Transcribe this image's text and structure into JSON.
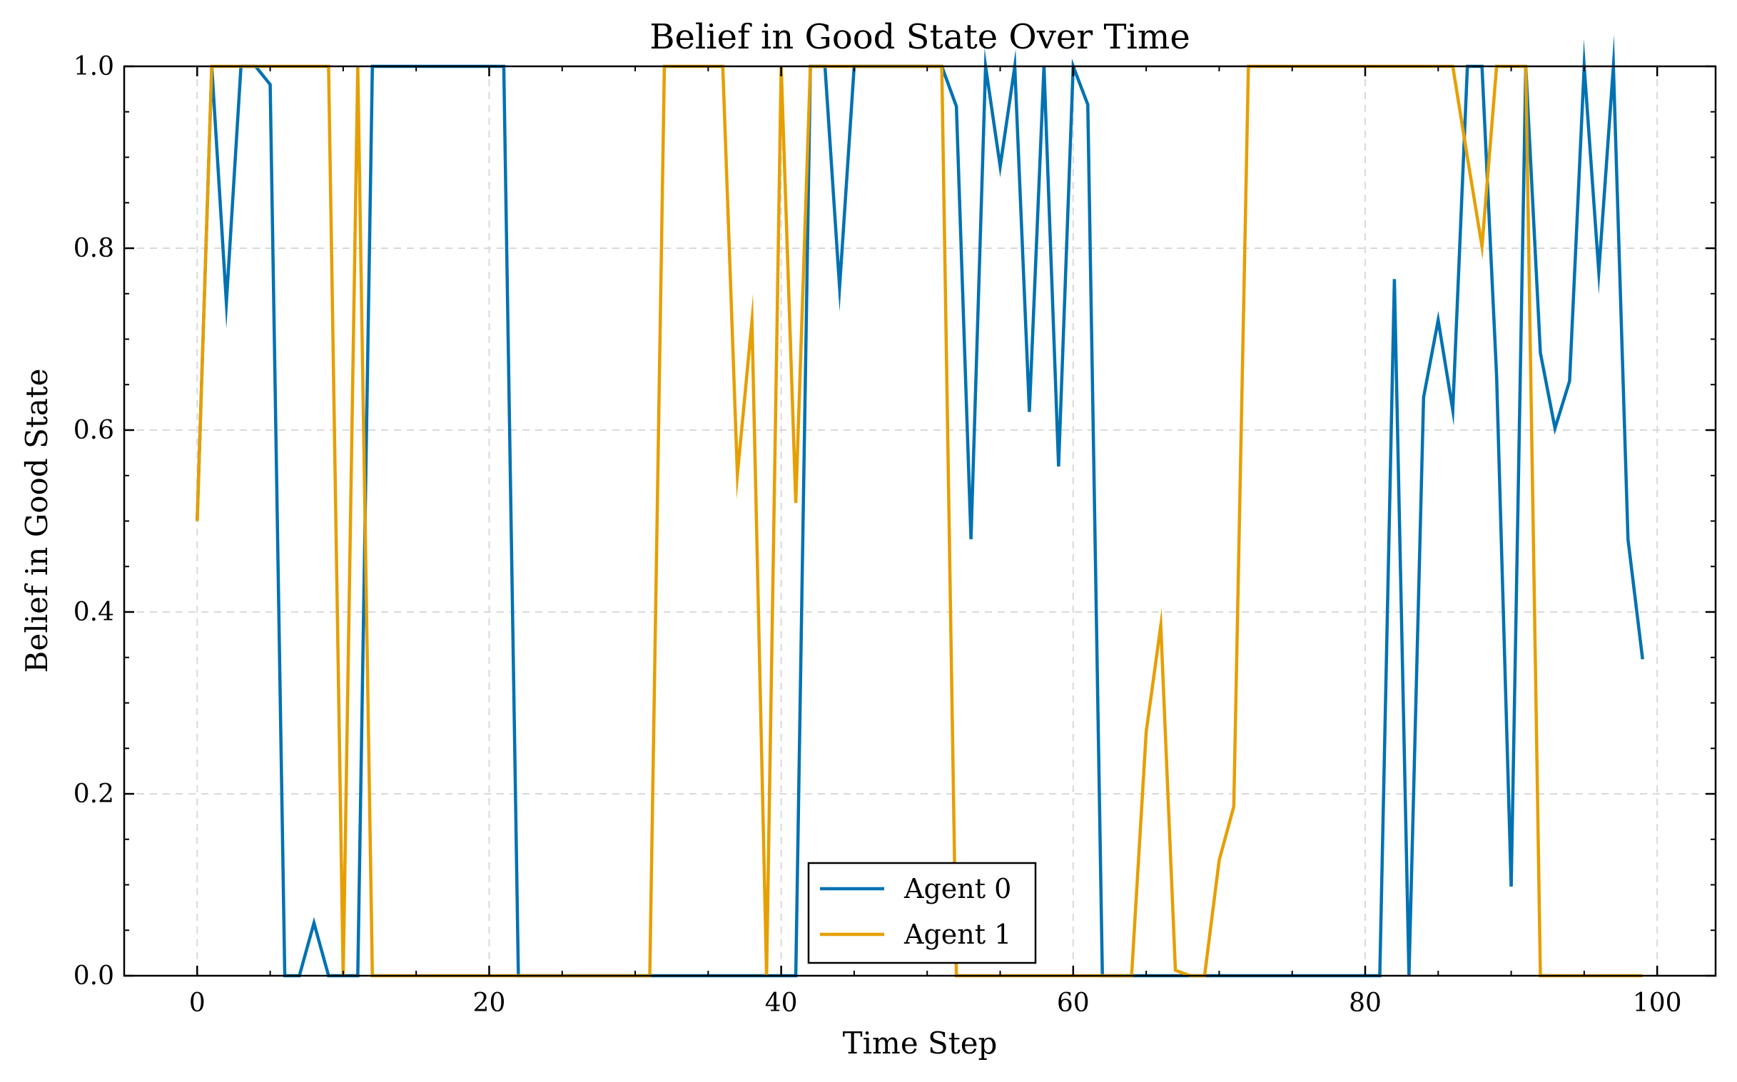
{
  "chart_data": {
    "type": "line",
    "title": "Belief in Good State Over Time",
    "xlabel": "Time Step",
    "ylabel": "Belief in Good State",
    "xlim": [
      -5,
      104
    ],
    "ylim": [
      0,
      1
    ],
    "xticks": [
      0,
      20,
      40,
      60,
      80,
      100
    ],
    "yticks": [
      0.0,
      0.2,
      0.4,
      0.6,
      0.8,
      1.0
    ],
    "xtick_labels": [
      "0",
      "20",
      "40",
      "60",
      "80",
      "100"
    ],
    "ytick_labels": [
      "0.0",
      "0.2",
      "0.4",
      "0.6",
      "0.8",
      "1.0"
    ],
    "grid": true,
    "legend_position": "bottom-center",
    "x": [
      0,
      1,
      2,
      3,
      4,
      5,
      6,
      7,
      8,
      9,
      10,
      11,
      12,
      13,
      14,
      15,
      16,
      17,
      18,
      19,
      20,
      21,
      22,
      23,
      24,
      25,
      26,
      27,
      28,
      29,
      30,
      31,
      32,
      33,
      34,
      35,
      36,
      37,
      38,
      39,
      40,
      41,
      42,
      43,
      44,
      45,
      46,
      47,
      48,
      49,
      50,
      51,
      52,
      53,
      54,
      55,
      56,
      57,
      58,
      59,
      60,
      61,
      62,
      63,
      64,
      65,
      66,
      67,
      68,
      69,
      70,
      71,
      72,
      73,
      74,
      75,
      76,
      77,
      78,
      79,
      80,
      81,
      82,
      83,
      84,
      85,
      86,
      87,
      88,
      89,
      90,
      91,
      92,
      93,
      94,
      95,
      96,
      97,
      98,
      99
    ],
    "series": [
      {
        "name": "Agent 0",
        "color": "#0072B2",
        "values": [
          0.5,
          1.0,
          0.74,
          1.0,
          1.0,
          0.98,
          0.0,
          0.0,
          0.058,
          0.0,
          0.0,
          0.0,
          1.0,
          1.0,
          1.0,
          1.0,
          1.0,
          1.0,
          1.0,
          1.0,
          1.0,
          1.0,
          0.0,
          0.0,
          0.0,
          0.0,
          0.0,
          0.0,
          0.0,
          0.0,
          0.0,
          0.0,
          0.0,
          0.0,
          0.0,
          0.0,
          0.0,
          0.0,
          0.0,
          0.0,
          0.0,
          0.0,
          1.0,
          1.0,
          0.757,
          1.0,
          1.0,
          1.0,
          1.0,
          1.0,
          1.0,
          1.0,
          0.956,
          0.48,
          1.0,
          0.89,
          1.0,
          0.62,
          1.0,
          0.56,
          1.0,
          0.958,
          0.0,
          0.0,
          0.0,
          0.0,
          0.0,
          0.0,
          0.0,
          0.0,
          0.0,
          0.0,
          0.0,
          0.0,
          0.0,
          0.0,
          0.0,
          0.0,
          0.0,
          0.0,
          0.0,
          0.0,
          0.766,
          0.0,
          0.636,
          0.721,
          0.622,
          1.0,
          1.0,
          0.66,
          0.098,
          1.0,
          0.685,
          0.602,
          0.654,
          1.0,
          0.774,
          1.0,
          0.48,
          0.348
        ]
      },
      {
        "name": "Agent 1",
        "color": "#E69F00",
        "values": [
          0.5,
          1.0,
          1.0,
          1.0,
          1.0,
          1.0,
          1.0,
          1.0,
          1.0,
          1.0,
          0.0,
          1.0,
          0.0,
          0.0,
          0.0,
          0.0,
          0.0,
          0.0,
          0.0,
          0.0,
          0.0,
          0.0,
          0.0,
          0.0,
          0.0,
          0.0,
          0.0,
          0.0,
          0.0,
          0.0,
          0.0,
          0.0,
          1.0,
          1.0,
          1.0,
          1.0,
          1.0,
          0.551,
          0.72,
          0.0,
          1.0,
          0.52,
          1.0,
          1.0,
          1.0,
          1.0,
          1.0,
          1.0,
          1.0,
          1.0,
          1.0,
          1.0,
          0.0,
          0.0,
          0.0,
          0.0,
          0.0,
          0.0,
          0.0,
          0.0,
          0.0,
          0.0,
          0.0,
          0.0,
          0.0,
          0.268,
          0.385,
          0.006,
          0.0,
          0.0,
          0.127,
          0.186,
          1.0,
          1.0,
          1.0,
          1.0,
          1.0,
          1.0,
          1.0,
          1.0,
          1.0,
          1.0,
          1.0,
          1.0,
          1.0,
          1.0,
          1.0,
          0.9,
          0.802,
          1.0,
          1.0,
          1.0,
          0.0,
          0.0,
          0.0,
          0.0,
          0.0,
          0.0,
          0.0,
          0.0
        ]
      }
    ]
  }
}
